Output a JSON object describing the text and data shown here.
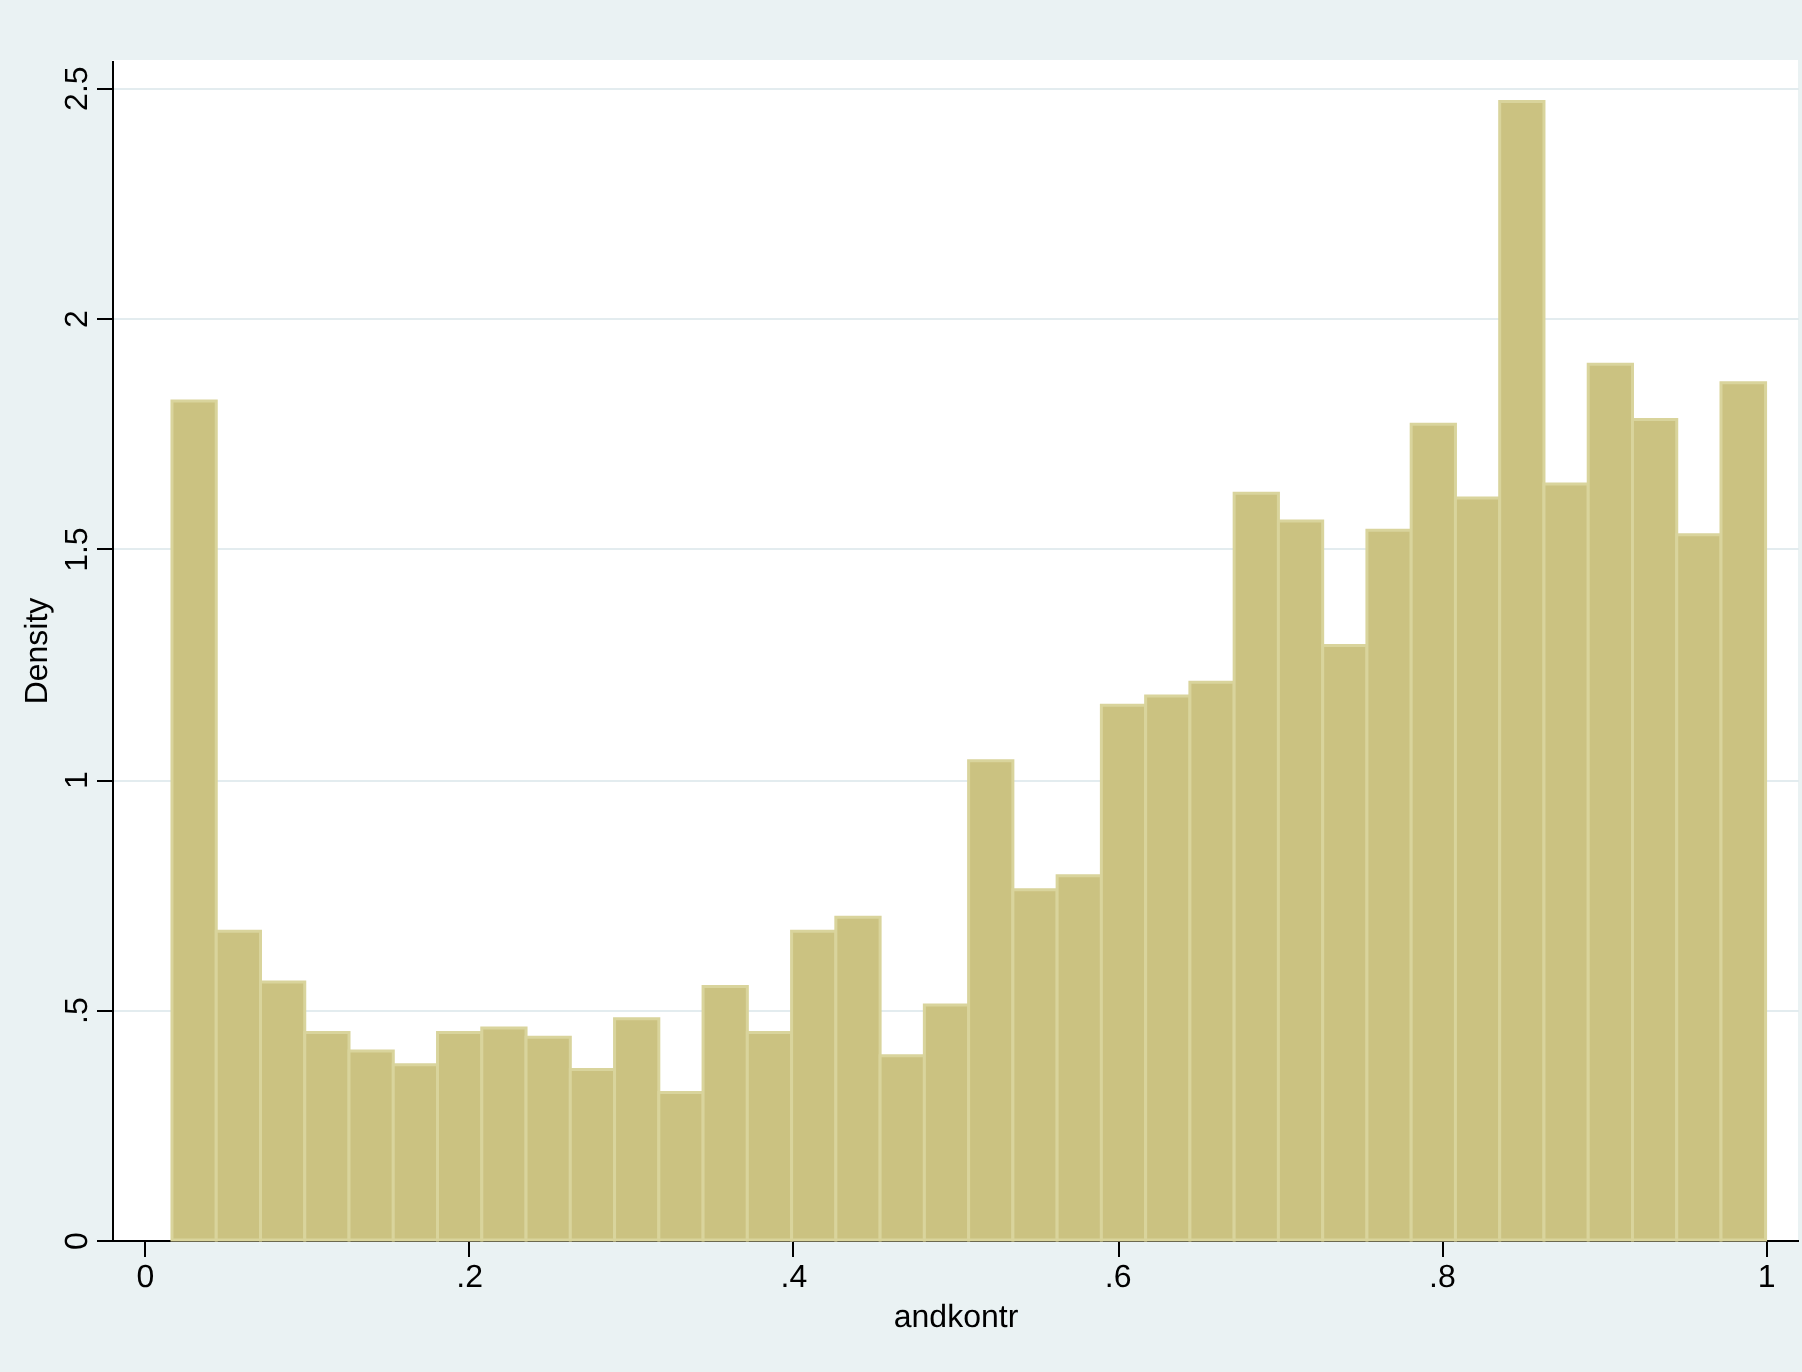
{
  "chart_data": {
    "type": "histogram",
    "xlabel": "andkontr",
    "ylabel": "Density",
    "bins": [
      0.017,
      0.0443,
      0.0716,
      0.0989,
      0.1262,
      0.1535,
      0.1808,
      0.2081,
      0.2354,
      0.2627,
      0.29,
      0.3173,
      0.3446,
      0.3719,
      0.3992,
      0.4265,
      0.4538,
      0.4811,
      0.5084,
      0.5357,
      0.563,
      0.5903,
      0.6176,
      0.6449,
      0.6722,
      0.6995,
      0.7268,
      0.7541,
      0.7814,
      0.8087,
      0.836,
      0.8633,
      0.8906,
      0.9179,
      0.9452,
      0.9725,
      1.0
    ],
    "values": [
      1.82,
      0.67,
      0.56,
      0.45,
      0.41,
      0.38,
      0.45,
      0.46,
      0.44,
      0.37,
      0.48,
      0.32,
      0.55,
      0.45,
      0.67,
      0.7,
      0.4,
      0.51,
      1.04,
      0.76,
      0.79,
      1.16,
      1.18,
      1.21,
      1.62,
      1.56,
      1.29,
      1.54,
      1.77,
      1.61,
      2.47,
      1.64,
      1.9,
      1.78,
      1.53,
      1.86
    ],
    "color": "#cbc281",
    "xlim": [
      -0.02,
      1.02
    ],
    "ylim": [
      0,
      2.56
    ],
    "xticks": [
      0,
      {
        "value": 0.2,
        "label": ".2"
      },
      {
        "value": 0.4,
        "label": ".4"
      },
      {
        "value": 0.6,
        "label": ".6"
      },
      {
        "value": 0.8,
        "label": ".8"
      },
      1
    ],
    "yticks": [
      0,
      {
        "value": 0.5,
        "label": ".5"
      },
      1,
      1.5,
      2,
      2.5
    ],
    "grid": "y"
  }
}
